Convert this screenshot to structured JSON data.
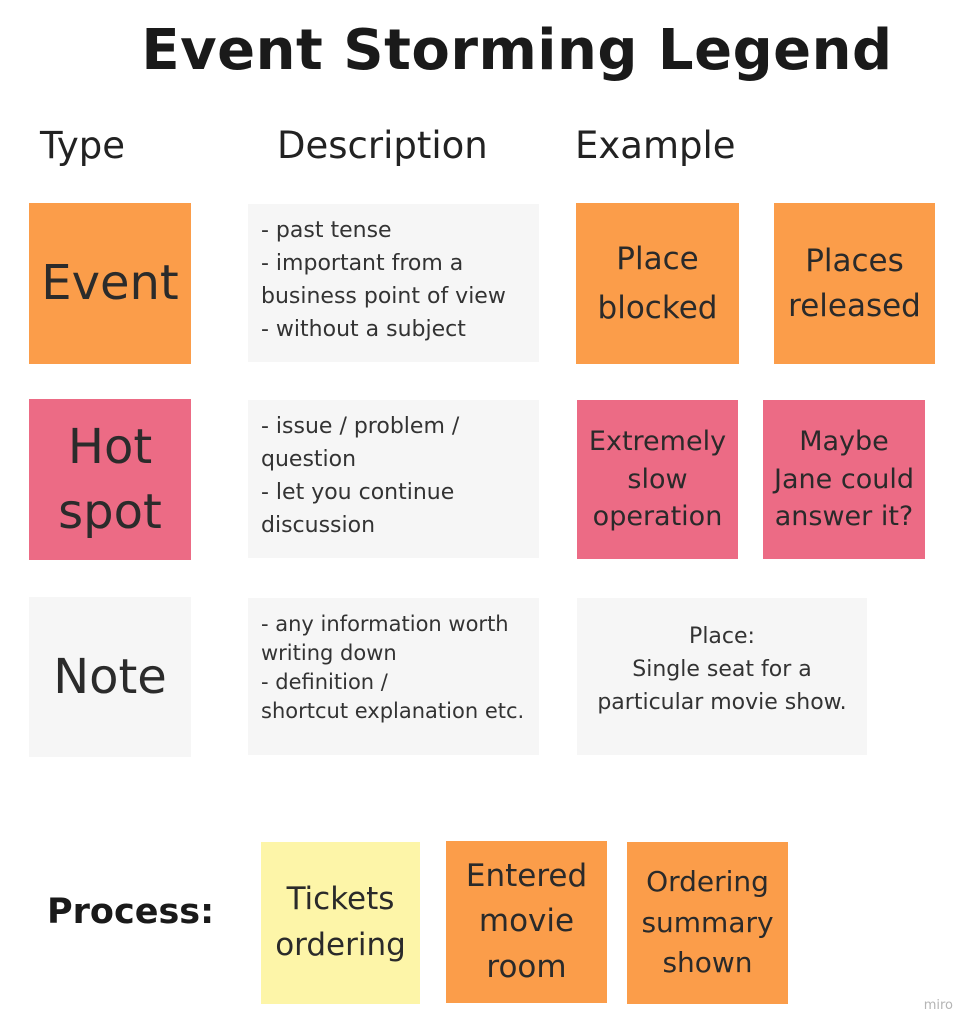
{
  "title": "Event Storming Legend",
  "columns": {
    "type": "Type",
    "description": "Description",
    "example": "Example"
  },
  "rows": [
    {
      "type_lines": [
        "Event"
      ],
      "description_lines": [
        "- past tense",
        "- important from a",
        "business point of view",
        "- without a subject"
      ],
      "examples": [
        {
          "lines": [
            "Place",
            "blocked"
          ]
        },
        {
          "lines": [
            "Places",
            "released"
          ]
        }
      ]
    },
    {
      "type_lines": [
        "Hot",
        "spot"
      ],
      "description_lines": [
        "- issue / problem /",
        "question",
        "- let you continue",
        "discussion"
      ],
      "examples": [
        {
          "lines": [
            "Extremely",
            "slow",
            "operation"
          ]
        },
        {
          "lines": [
            "Maybe",
            "Jane could",
            "answer it?"
          ]
        }
      ]
    },
    {
      "type_lines": [
        "Note"
      ],
      "description_lines": [
        "- any information worth",
        "writing down",
        "- definition /",
        "shortcut explanation etc."
      ],
      "examples": [
        {
          "lines": [
            "Place:",
            "Single seat for a",
            "particular movie show."
          ]
        }
      ]
    }
  ],
  "process": {
    "label": "Process:",
    "steps": [
      {
        "lines": [
          "Tickets",
          "ordering"
        ]
      },
      {
        "lines": [
          "Entered",
          "movie",
          "room"
        ]
      },
      {
        "lines": [
          "Ordering",
          "summary",
          "shown"
        ]
      }
    ]
  },
  "watermark": "miro",
  "colors": {
    "event": "#fb9d4a",
    "hot_spot": "#ec6b85",
    "note": "#f6f6f6",
    "command": "#fdf5a8",
    "background": "#ffffff"
  }
}
